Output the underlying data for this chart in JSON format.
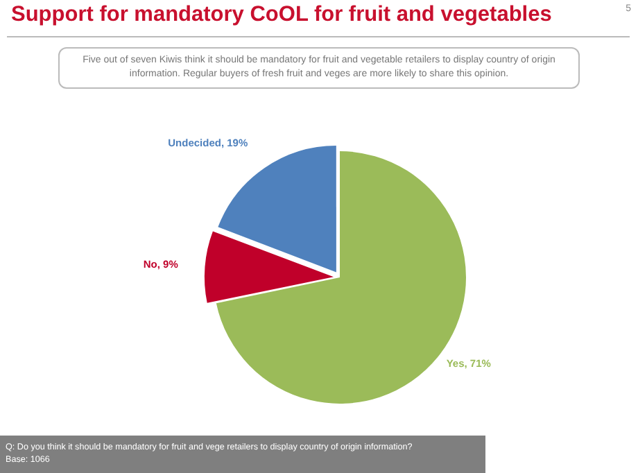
{
  "chart_data": {
    "type": "pie",
    "title": "Support for mandatory CoOL for fruit and vegetables",
    "subtitle": "Five out of seven Kiwis think it should be mandatory for fruit and vegetable retailers to display country of origin information. Regular buyers of fresh fruit and veges are more likely to share this opinion.",
    "categories": [
      "Yes",
      "No",
      "Undecided"
    ],
    "values": [
      71,
      9,
      19
    ],
    "colors": [
      "#9bbb59",
      "#c0002a",
      "#4f81bd"
    ],
    "value_labels": [
      "71%",
      "9%",
      "19%"
    ],
    "legend": false,
    "annotations": [
      "5",
      "Q: Do you think it should be mandatory for fruit and vege retailers to display country of origin information?",
      "Base: 1066"
    ]
  }
}
